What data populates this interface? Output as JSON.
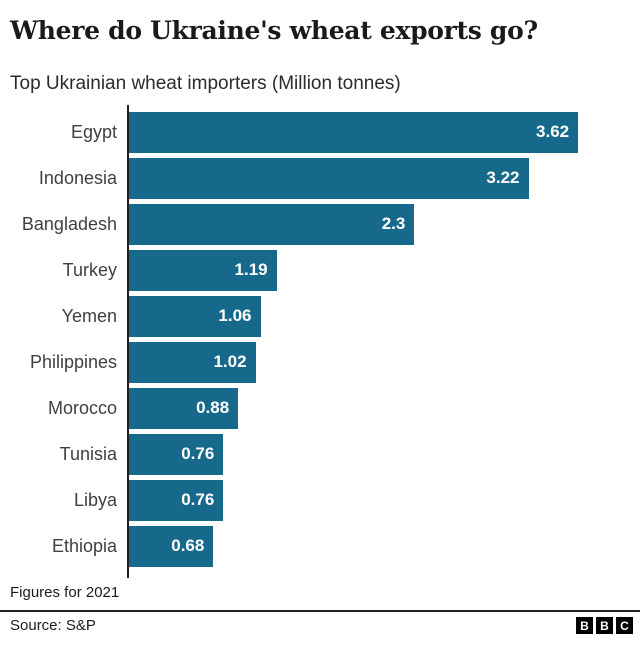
{
  "header": {
    "title": "Where do Ukraine's wheat exports go?",
    "subtitle": "Top Ukrainian wheat importers (Million tonnes)"
  },
  "chart_data": {
    "type": "bar",
    "orientation": "horizontal",
    "title": "Where do Ukraine's wheat exports go?",
    "subtitle": "Top Ukrainian wheat importers (Million tonnes)",
    "unit": "Million tonnes",
    "categories": [
      "Egypt",
      "Indonesia",
      "Bangladesh",
      "Turkey",
      "Yemen",
      "Philippines",
      "Morocco",
      "Tunisia",
      "Libya",
      "Ethiopia"
    ],
    "values": [
      3.62,
      3.22,
      2.3,
      1.19,
      1.06,
      1.02,
      0.88,
      0.76,
      0.76,
      0.68
    ],
    "value_labels": [
      "3.62",
      "3.22",
      "2.3",
      "1.19",
      "1.06",
      "1.02",
      "0.88",
      "0.76",
      "0.76",
      "0.68"
    ],
    "xlim": [
      0,
      4.03
    ],
    "grid": false,
    "legend": false,
    "bar_color": "#17698C",
    "category_label_color": "#404040",
    "value_label_color": "#ffffff",
    "axis_color": "#222222"
  },
  "footer": {
    "note": "Figures for 2021",
    "source": "Source: S&P",
    "logo_letters": [
      "B",
      "B",
      "C"
    ]
  },
  "colors": {
    "background": "#ffffff",
    "bar": "#17698C",
    "title_text": "#1a1a1a",
    "category_text": "#404040",
    "divider": "#222222",
    "logo_block": "#000000"
  }
}
